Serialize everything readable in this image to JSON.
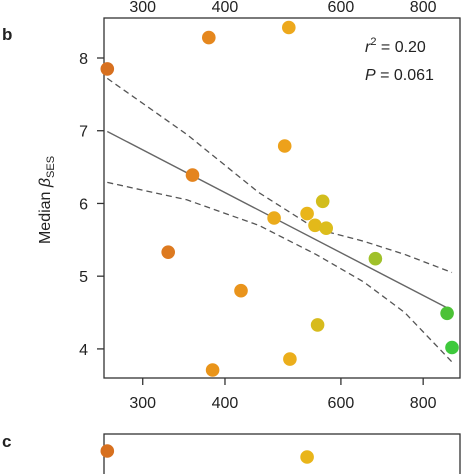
{
  "panel_letters": {
    "b": "b",
    "c": "c"
  },
  "stats": {
    "r2_label": "r",
    "r2_sup": "2",
    "r2_value": " = 0.20",
    "p_label": "P",
    "p_value": " = 0.061"
  },
  "ylabel": {
    "main": "Median ",
    "beta": "β",
    "sub": "SES"
  },
  "colors": {
    "axis": "#333333",
    "fit_line": "#666666",
    "ci_line": "#555555"
  },
  "chart_data": {
    "type": "scatter",
    "title": "",
    "xlabel": "",
    "ylabel": "Median β SES",
    "x_scale": "log",
    "xlim": [
      262,
      910
    ],
    "ylim": [
      3.6,
      8.55
    ],
    "x_ticks": [
      300,
      400,
      600,
      800
    ],
    "x_tick_labels": [
      "300",
      "400",
      "600",
      "800"
    ],
    "y_ticks": [
      4,
      5,
      6,
      7,
      8
    ],
    "y_tick_labels": [
      "4",
      "5",
      "6",
      "7",
      "8"
    ],
    "grid": false,
    "legend": "none",
    "points": [
      {
        "x": 265,
        "y": 7.85,
        "color": "#d7701f"
      },
      {
        "x": 378,
        "y": 8.28,
        "color": "#e5871d"
      },
      {
        "x": 500,
        "y": 8.42,
        "color": "#eda81c"
      },
      {
        "x": 357,
        "y": 6.39,
        "color": "#e4841e"
      },
      {
        "x": 493,
        "y": 6.79,
        "color": "#eda11b"
      },
      {
        "x": 475,
        "y": 5.8,
        "color": "#ebab1b"
      },
      {
        "x": 533,
        "y": 5.86,
        "color": "#e9b51a"
      },
      {
        "x": 548,
        "y": 5.7,
        "color": "#e3b91a"
      },
      {
        "x": 563,
        "y": 6.03,
        "color": "#d2bd1c"
      },
      {
        "x": 570,
        "y": 5.66,
        "color": "#dcbd1c"
      },
      {
        "x": 328,
        "y": 5.33,
        "color": "#dd7a20"
      },
      {
        "x": 423,
        "y": 4.8,
        "color": "#e9941c"
      },
      {
        "x": 677,
        "y": 5.24,
        "color": "#a0c12a"
      },
      {
        "x": 553,
        "y": 4.33,
        "color": "#d7bb1d"
      },
      {
        "x": 502,
        "y": 3.86,
        "color": "#ebae1b"
      },
      {
        "x": 383,
        "y": 3.71,
        "color": "#e99419"
      },
      {
        "x": 870,
        "y": 4.49,
        "color": "#4cc236"
      },
      {
        "x": 885,
        "y": 4.02,
        "color": "#3ec93c"
      }
    ],
    "fit_line": {
      "x": [
        265,
        885
      ],
      "y": [
        6.99,
        4.53
      ]
    },
    "ci_upper": {
      "x": [
        265,
        350,
        450,
        550,
        650,
        750,
        885
      ],
      "y": [
        7.72,
        6.95,
        6.15,
        5.65,
        5.48,
        5.3,
        5.05
      ]
    },
    "ci_lower": {
      "x": [
        265,
        350,
        450,
        550,
        650,
        750,
        885
      ],
      "y": [
        6.29,
        6.05,
        5.7,
        5.3,
        4.92,
        4.5,
        3.82
      ]
    },
    "panel_c_points": [
      {
        "x": 265,
        "color": "#d7701f"
      },
      {
        "x": 533,
        "color": "#e9b51a"
      }
    ]
  }
}
